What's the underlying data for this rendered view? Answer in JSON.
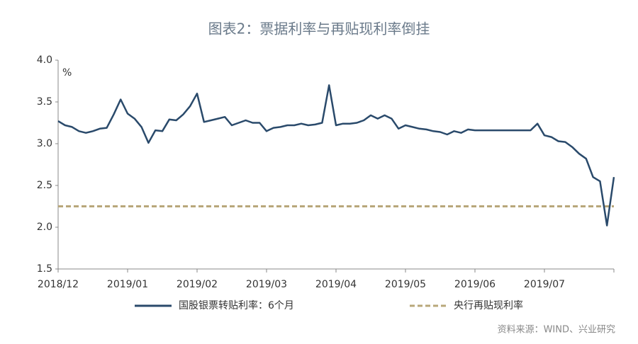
{
  "chart_data": {
    "type": "line",
    "title": "图表2：票据利率与再贴现利率倒挂",
    "unit_label": "%",
    "source": "资料来源：WIND、兴业研究",
    "categories": [
      "2018/12",
      null,
      null,
      null,
      null,
      null,
      null,
      null,
      null,
      null,
      "2019/01",
      null,
      null,
      null,
      null,
      null,
      null,
      null,
      null,
      null,
      "2019/02",
      null,
      null,
      null,
      null,
      null,
      null,
      null,
      null,
      null,
      "2019/03",
      null,
      null,
      null,
      null,
      null,
      null,
      null,
      null,
      null,
      "2019/04",
      null,
      null,
      null,
      null,
      null,
      null,
      null,
      null,
      null,
      "2019/05",
      null,
      null,
      null,
      null,
      null,
      null,
      null,
      null,
      null,
      "2019/06",
      null,
      null,
      null,
      null,
      null,
      null,
      null,
      null,
      null,
      "2019/07",
      null,
      null,
      null,
      null,
      null,
      null,
      null,
      null,
      null,
      null
    ],
    "series": [
      {
        "name": "国股银票转贴利率：6个月",
        "color": "#2a4a6b",
        "values": [
          3.27,
          3.22,
          3.2,
          3.15,
          3.13,
          3.15,
          3.18,
          3.19,
          3.35,
          3.53,
          3.36,
          3.3,
          3.2,
          3.01,
          3.16,
          3.15,
          3.29,
          3.28,
          3.35,
          3.45,
          3.6,
          3.26,
          3.28,
          3.3,
          3.32,
          3.22,
          3.25,
          3.28,
          3.25,
          3.25,
          3.15,
          3.19,
          3.2,
          3.22,
          3.22,
          3.24,
          3.22,
          3.23,
          3.25,
          3.7,
          3.22,
          3.24,
          3.24,
          3.25,
          3.28,
          3.34,
          3.3,
          3.34,
          3.3,
          3.18,
          3.22,
          3.2,
          3.18,
          3.17,
          3.15,
          3.14,
          3.11,
          3.15,
          3.13,
          3.17,
          3.16,
          3.16,
          3.16,
          3.16,
          3.16,
          3.16,
          3.16,
          3.16,
          3.16,
          3.24,
          3.1,
          3.08,
          3.03,
          3.02,
          2.96,
          2.88,
          2.82,
          2.6,
          2.55,
          2.02,
          2.6
        ]
      }
    ],
    "reference_line": {
      "name": "央行再贴现利率",
      "value": 2.25,
      "color": "#b8a77a"
    },
    "ylim": [
      1.5,
      4
    ],
    "yticks": [
      1.5,
      {
        "value": 2,
        "label": "2.0"
      },
      2.5,
      {
        "value": 3,
        "label": "3.0"
      },
      3.5,
      {
        "value": 4,
        "label": "4.0"
      }
    ],
    "grid": false
  }
}
